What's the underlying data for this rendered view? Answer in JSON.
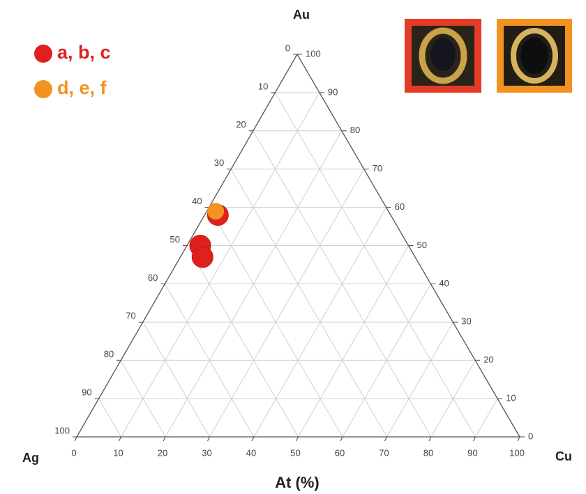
{
  "chart_data": {
    "type": "ternary",
    "title": "At (%)",
    "components": {
      "top": "Au",
      "left": "Ag",
      "right": "Cu"
    },
    "ag_ticks": [
      0,
      10,
      20,
      30,
      40,
      50,
      60,
      70,
      80,
      90,
      100
    ],
    "au_ticks": [
      0,
      10,
      20,
      30,
      40,
      50,
      60,
      70,
      80,
      90,
      100
    ],
    "cu_ticks": [
      0,
      10,
      20,
      30,
      40,
      50,
      60,
      70,
      80,
      90,
      100
    ],
    "grid": true,
    "series": [
      {
        "name": "a, b, c",
        "color": "#e0201e",
        "au": [
          58,
          50,
          47
        ],
        "ag": [
          39,
          47,
          48
        ],
        "cu": [
          3,
          3,
          5
        ]
      },
      {
        "name": "d, e, f",
        "color": "#f39221",
        "au": [
          59
        ],
        "ag": [
          39
        ],
        "cu": [
          2
        ]
      }
    ]
  }
}
